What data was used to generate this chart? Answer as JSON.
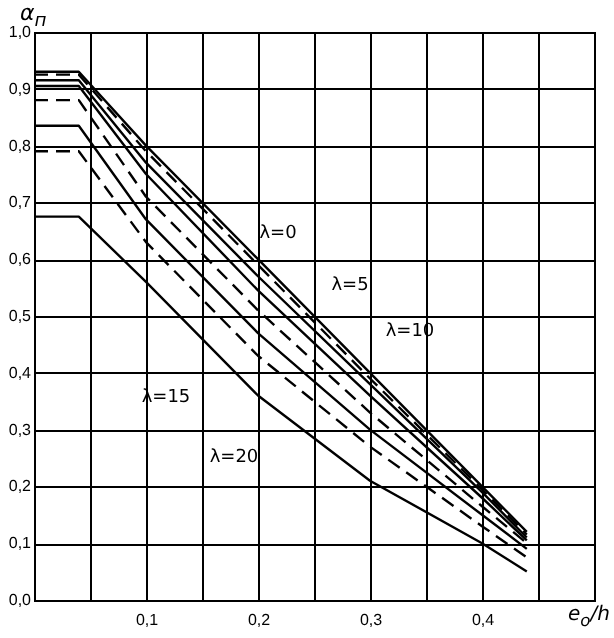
{
  "chart_data": {
    "type": "line",
    "xlabel": "e$_{o}$/h",
    "ylabel": "α$_{п}$",
    "x": [
      0,
      0.04,
      0.1,
      0.2,
      0.3,
      0.4,
      0.44
    ],
    "series": [
      {
        "color": "#000000",
        "line_style": "solid",
        "values": [
          0.93,
          0.93,
          0.8,
          0.6,
          0.4,
          0.2,
          0.12
        ]
      },
      {
        "color": "#000000",
        "line_style": "dashed",
        "values": [
          0.925,
          0.925,
          0.79,
          0.59,
          0.39,
          0.195,
          0.115
        ]
      },
      {
        "color": "#000000",
        "line_style": "solid",
        "values": [
          0.915,
          0.915,
          0.77,
          0.57,
          0.38,
          0.19,
          0.11
        ]
      },
      {
        "color": "#000000",
        "line_style": "solid",
        "values": [
          0.905,
          0.905,
          0.75,
          0.545,
          0.36,
          0.18,
          0.105
        ]
      },
      {
        "color": "#000000",
        "line_style": "dashed",
        "values": [
          0.88,
          0.88,
          0.71,
          0.51,
          0.33,
          0.165,
          0.1
        ]
      },
      {
        "color": "#000000",
        "line_style": "solid",
        "values": [
          0.835,
          0.835,
          0.67,
          0.47,
          0.3,
          0.15,
          0.09
        ]
      },
      {
        "color": "#000000",
        "line_style": "dashed",
        "values": [
          0.79,
          0.79,
          0.63,
          0.43,
          0.27,
          0.13,
          0.075
        ]
      },
      {
        "color": "#000000",
        "line_style": "solid",
        "values": [
          0.675,
          0.675,
          0.56,
          0.36,
          0.21,
          0.1,
          0.05
        ]
      }
    ],
    "xlim": [
      0,
      0.5
    ],
    "ylim": [
      0,
      1
    ],
    "xticks": [
      {
        "value": 0.05,
        "label": null
      },
      {
        "value": 0.1,
        "label": "0,1"
      },
      {
        "value": 0.15,
        "label": null
      },
      {
        "value": 0.2,
        "label": "0,2"
      },
      {
        "value": 0.25,
        "label": null
      },
      {
        "value": 0.3,
        "label": "0,3"
      },
      {
        "value": 0.35,
        "label": null
      },
      {
        "value": 0.4,
        "label": "0,4"
      },
      {
        "value": 0.45,
        "label": null
      }
    ],
    "yticks": [
      {
        "value": 0,
        "label": "0,0"
      },
      {
        "value": 0.1,
        "label": "0,1"
      },
      {
        "value": 0.2,
        "label": "0,2"
      },
      {
        "value": 0.3,
        "label": "0,3"
      },
      {
        "value": 0.4,
        "label": "0,4"
      },
      {
        "value": 0.5,
        "label": "0,5"
      },
      {
        "value": 0.6,
        "label": "0,6"
      },
      {
        "value": 0.7,
        "label": "0,7"
      },
      {
        "value": 0.8,
        "label": "0,8"
      },
      {
        "value": 0.9,
        "label": "0,9"
      },
      {
        "value": 1,
        "label": "1,0"
      }
    ],
    "grid": true,
    "annotations": [
      "λ=0",
      "λ=5",
      "λ=10",
      "λ=15",
      "λ=20"
    ]
  }
}
